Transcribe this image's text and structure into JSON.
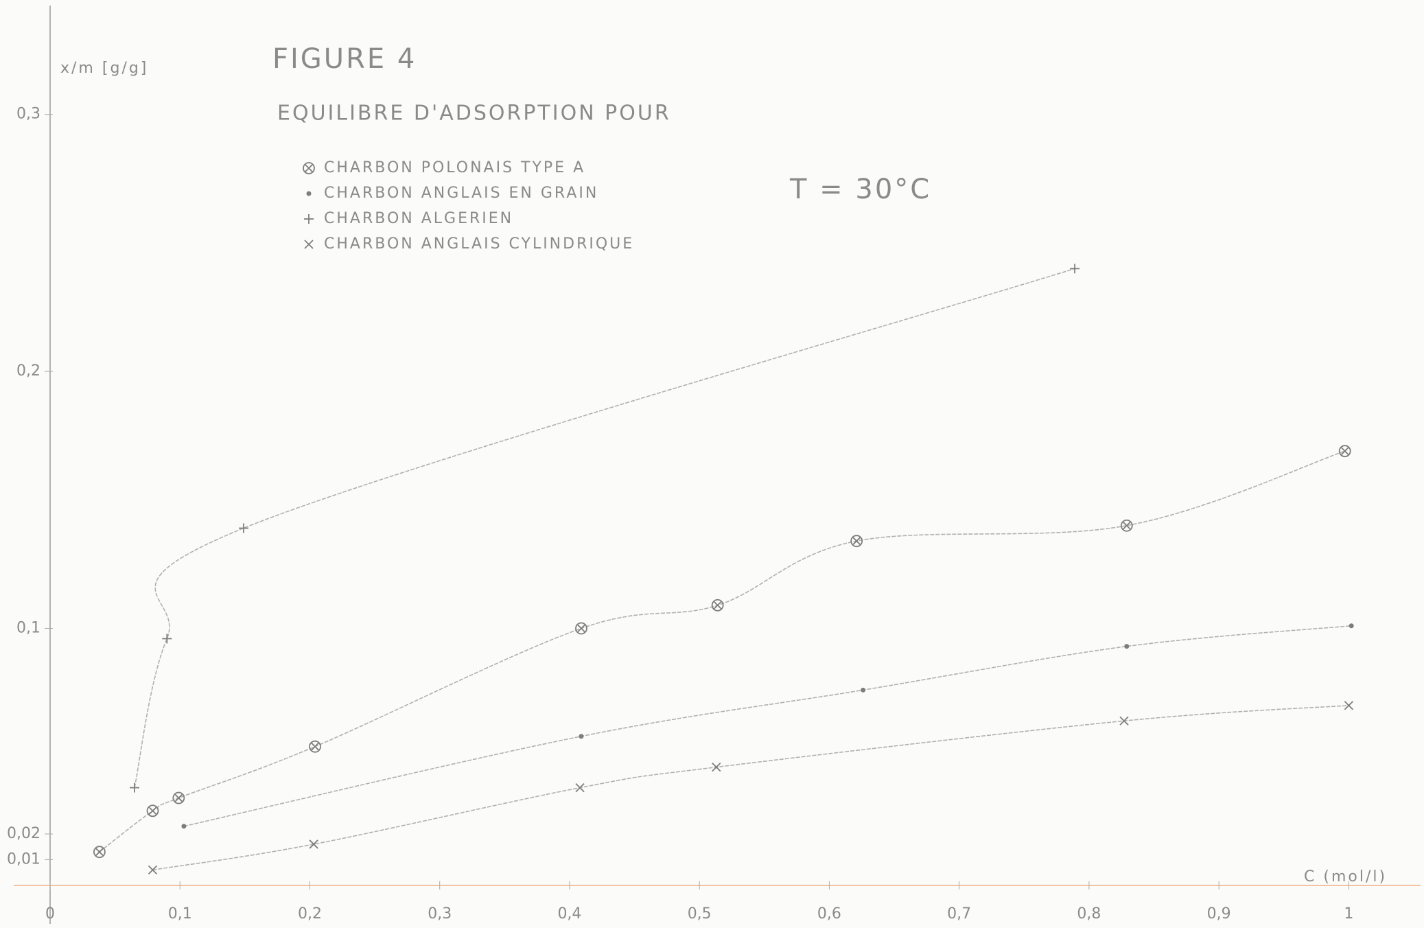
{
  "chart_data": {
    "type": "scatter",
    "title": "FIGURE 4",
    "subtitle": "EQUILIBRE D'ADSORPTION POUR",
    "annotation": "T = 30°C",
    "y_label": "x/m [g/g]",
    "x_label": "C (mol/l)",
    "xlim": [
      0,
      1.05
    ],
    "ylim": [
      -0.015,
      0.34
    ],
    "xticks": [
      {
        "value": 0,
        "label": "0"
      },
      {
        "value": 0.1,
        "label": "0,1"
      },
      {
        "value": 0.2,
        "label": "0,2"
      },
      {
        "value": 0.3,
        "label": "0,3"
      },
      {
        "value": 0.4,
        "label": "0,4"
      },
      {
        "value": 0.5,
        "label": "0,5"
      },
      {
        "value": 0.6,
        "label": "0,6"
      },
      {
        "value": 0.7,
        "label": "0,7"
      },
      {
        "value": 0.8,
        "label": "0,8"
      },
      {
        "value": 0.9,
        "label": "0,9"
      },
      1
    ],
    "yticks": [
      {
        "value": 0.01,
        "label": "0,01"
      },
      {
        "value": 0.02,
        "label": "0,02"
      },
      {
        "value": 0.1,
        "label": "0,1"
      },
      {
        "value": 0.2,
        "label": "0,2"
      },
      {
        "value": 0.3,
        "label": "0,3"
      }
    ],
    "line": true,
    "series": [
      {
        "name": "CHARBON POLONAIS TYPE A",
        "marker": "circle-cross",
        "color": "#7d7d7d",
        "x": [
          0.038,
          0.079,
          0.099,
          0.204,
          0.409,
          0.514,
          0.621,
          0.829,
          0.997
        ],
        "values": [
          0.013,
          0.029,
          0.034,
          0.054,
          0.1,
          0.109,
          0.134,
          0.14,
          0.169
        ]
      },
      {
        "name": "CHARBON ANGLAIS EN GRAIN",
        "marker": "dot",
        "color": "#7d7d7d",
        "x": [
          0.103,
          0.409,
          0.626,
          0.829,
          1.002
        ],
        "values": [
          0.023,
          0.058,
          0.076,
          0.093,
          0.101
        ]
      },
      {
        "name": "CHARBON ALGERIEN",
        "marker": "plus",
        "color": "#7d7d7d",
        "x": [
          0.065,
          0.09,
          0.149,
          0.789
        ],
        "values": [
          0.038,
          0.096,
          0.139,
          0.24
        ]
      },
      {
        "name": "CHARBON ANGLAIS CYLINDRIQUE",
        "marker": "cross",
        "color": "#7d7d7d",
        "x": [
          0.079,
          0.203,
          0.408,
          0.513,
          0.827,
          1.0
        ],
        "values": [
          0.006,
          0.016,
          0.038,
          0.046,
          0.064,
          0.07
        ]
      }
    ]
  }
}
